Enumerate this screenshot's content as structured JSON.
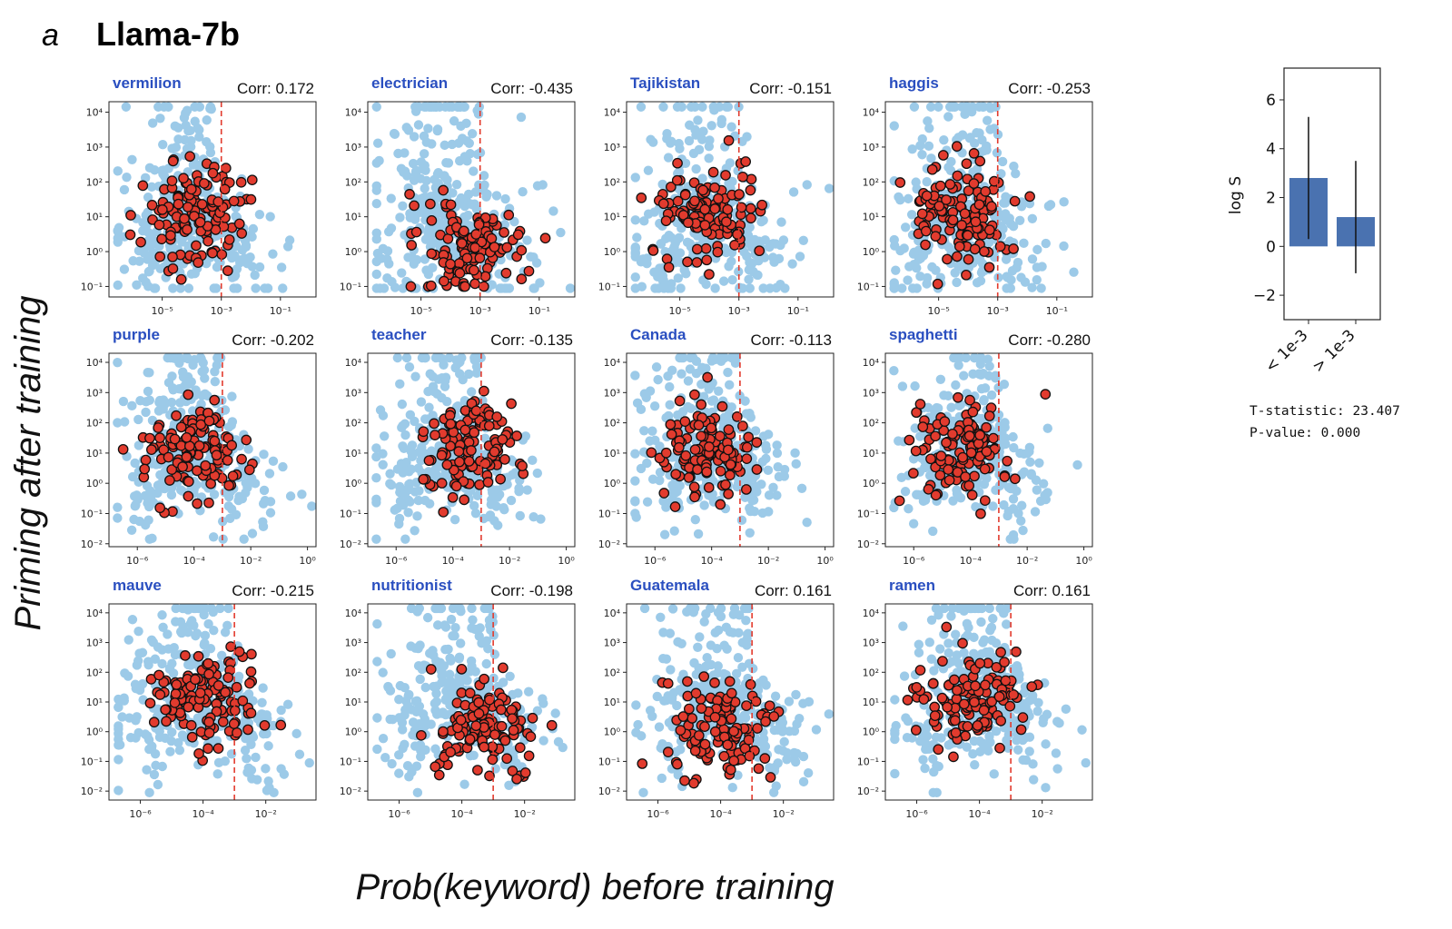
{
  "figure": {
    "panel_letter": "a",
    "title": "Llama-7b",
    "ylabel": "Priming after training",
    "xlabel": "Prob(keyword) before training",
    "colors": {
      "background_points": "#9ccae8",
      "keyword_points": "#e23b2e",
      "marker_edge": "#111111",
      "threshold_line": "#e23b2e",
      "keyword_text": "#2a4fc0",
      "bar": "#4a72b0"
    }
  },
  "chart_data": [
    {
      "type": "scatter",
      "keyword": "vermilion",
      "corr_label": "Corr: 0.172",
      "xscale": "log",
      "yscale": "log",
      "xlim": [
        1.58e-07,
        1.6
      ],
      "ylim": [
        0.05,
        20000
      ],
      "xticks": [
        1e-05,
        0.001,
        0.1
      ],
      "xtick_labels": [
        "10⁻⁵",
        "10⁻³",
        "10⁻¹"
      ],
      "yticks": [
        0.1,
        1,
        10,
        100,
        1000,
        10000
      ],
      "ytick_labels": [
        "10⁻¹",
        "10⁰",
        "10¹",
        "10²",
        "10³",
        "10⁴"
      ],
      "threshold_x": 0.001
    },
    {
      "type": "scatter",
      "keyword": "electrician",
      "corr_label": "Corr: -0.435",
      "xscale": "log",
      "yscale": "log",
      "xlim": [
        1.58e-07,
        1.6
      ],
      "ylim": [
        0.05,
        20000
      ],
      "xticks": [
        1e-05,
        0.001,
        0.1
      ],
      "xtick_labels": [
        "10⁻⁵",
        "10⁻³",
        "10⁻¹"
      ],
      "yticks": [
        0.1,
        1,
        10,
        100,
        1000,
        10000
      ],
      "ytick_labels": [
        "10⁻¹",
        "10⁰",
        "10¹",
        "10²",
        "10³",
        "10⁴"
      ],
      "threshold_x": 0.001
    },
    {
      "type": "scatter",
      "keyword": "Tajikistan",
      "corr_label": "Corr: -0.151",
      "xscale": "log",
      "yscale": "log",
      "xlim": [
        1.58e-07,
        1.6
      ],
      "ylim": [
        0.05,
        20000
      ],
      "xticks": [
        1e-05,
        0.001,
        0.1
      ],
      "xtick_labels": [
        "10⁻⁵",
        "10⁻³",
        "10⁻¹"
      ],
      "yticks": [
        0.1,
        1,
        10,
        100,
        1000,
        10000
      ],
      "ytick_labels": [
        "10⁻¹",
        "10⁰",
        "10¹",
        "10²",
        "10³",
        "10⁴"
      ],
      "threshold_x": 0.001
    },
    {
      "type": "scatter",
      "keyword": "haggis",
      "corr_label": "Corr: -0.253",
      "xscale": "log",
      "yscale": "log",
      "xlim": [
        1.58e-07,
        1.6
      ],
      "ylim": [
        0.05,
        20000
      ],
      "xticks": [
        1e-05,
        0.001,
        0.1
      ],
      "xtick_labels": [
        "10⁻⁵",
        "10⁻³",
        "10⁻¹"
      ],
      "yticks": [
        0.1,
        1,
        10,
        100,
        1000,
        10000
      ],
      "ytick_labels": [
        "10⁻¹",
        "10⁰",
        "10¹",
        "10²",
        "10³",
        "10⁴"
      ],
      "threshold_x": 0.001
    },
    {
      "type": "scatter",
      "keyword": "purple",
      "corr_label": "Corr: -0.202",
      "xscale": "log",
      "yscale": "log",
      "xlim": [
        1e-07,
        2
      ],
      "ylim": [
        0.008,
        20000
      ],
      "xticks": [
        1e-06,
        0.0001,
        0.01,
        1
      ],
      "xtick_labels": [
        "10⁻⁶",
        "10⁻⁴",
        "10⁻²",
        "10⁰"
      ],
      "yticks": [
        0.01,
        0.1,
        1,
        10,
        100,
        1000,
        10000
      ],
      "ytick_labels": [
        "10⁻²",
        "10⁻¹",
        "10⁰",
        "10¹",
        "10²",
        "10³",
        "10⁴"
      ],
      "threshold_x": 0.001
    },
    {
      "type": "scatter",
      "keyword": "teacher",
      "corr_label": "Corr: -0.135",
      "xscale": "log",
      "yscale": "log",
      "xlim": [
        1e-07,
        2
      ],
      "ylim": [
        0.008,
        20000
      ],
      "xticks": [
        1e-06,
        0.0001,
        0.01,
        1
      ],
      "xtick_labels": [
        "10⁻⁶",
        "10⁻⁴",
        "10⁻²",
        "10⁰"
      ],
      "yticks": [
        0.01,
        0.1,
        1,
        10,
        100,
        1000,
        10000
      ],
      "ytick_labels": [
        "10⁻²",
        "10⁻¹",
        "10⁰",
        "10¹",
        "10²",
        "10³",
        "10⁴"
      ],
      "threshold_x": 0.001
    },
    {
      "type": "scatter",
      "keyword": "Canada",
      "corr_label": "Corr: -0.113",
      "xscale": "log",
      "yscale": "log",
      "xlim": [
        1e-07,
        2
      ],
      "ylim": [
        0.008,
        20000
      ],
      "xticks": [
        1e-06,
        0.0001,
        0.01,
        1
      ],
      "xtick_labels": [
        "10⁻⁶",
        "10⁻⁴",
        "10⁻²",
        "10⁰"
      ],
      "yticks": [
        0.01,
        0.1,
        1,
        10,
        100,
        1000,
        10000
      ],
      "ytick_labels": [
        "10⁻²",
        "10⁻¹",
        "10⁰",
        "10¹",
        "10²",
        "10³",
        "10⁴"
      ],
      "threshold_x": 0.001
    },
    {
      "type": "scatter",
      "keyword": "spaghetti",
      "corr_label": "Corr: -0.280",
      "xscale": "log",
      "yscale": "log",
      "xlim": [
        1e-07,
        2
      ],
      "ylim": [
        0.008,
        20000
      ],
      "xticks": [
        1e-06,
        0.0001,
        0.01,
        1
      ],
      "xtick_labels": [
        "10⁻⁶",
        "10⁻⁴",
        "10⁻²",
        "10⁰"
      ],
      "yticks": [
        0.01,
        0.1,
        1,
        10,
        100,
        1000,
        10000
      ],
      "ytick_labels": [
        "10⁻²",
        "10⁻¹",
        "10⁰",
        "10¹",
        "10²",
        "10³",
        "10⁴"
      ],
      "threshold_x": 0.001
    },
    {
      "type": "scatter",
      "keyword": "mauve",
      "corr_label": "Corr: -0.215",
      "xscale": "log",
      "yscale": "log",
      "xlim": [
        1e-07,
        0.4
      ],
      "ylim": [
        0.005,
        20000
      ],
      "xticks": [
        1e-06,
        0.0001,
        0.01
      ],
      "xtick_labels": [
        "10⁻⁶",
        "10⁻⁴",
        "10⁻²"
      ],
      "yticks": [
        0.01,
        0.1,
        1,
        10,
        100,
        1000,
        10000
      ],
      "ytick_labels": [
        "10⁻²",
        "10⁻¹",
        "10⁰",
        "10¹",
        "10²",
        "10³",
        "10⁴"
      ],
      "threshold_x": 0.001
    },
    {
      "type": "scatter",
      "keyword": "nutritionist",
      "corr_label": "Corr: -0.198",
      "xscale": "log",
      "yscale": "log",
      "xlim": [
        1e-07,
        0.4
      ],
      "ylim": [
        0.005,
        20000
      ],
      "xticks": [
        1e-06,
        0.0001,
        0.01
      ],
      "xtick_labels": [
        "10⁻⁶",
        "10⁻⁴",
        "10⁻²"
      ],
      "yticks": [
        0.01,
        0.1,
        1,
        10,
        100,
        1000,
        10000
      ],
      "ytick_labels": [
        "10⁻²",
        "10⁻¹",
        "10⁰",
        "10¹",
        "10²",
        "10³",
        "10⁴"
      ],
      "threshold_x": 0.001
    },
    {
      "type": "scatter",
      "keyword": "Guatemala",
      "corr_label": "Corr: 0.161",
      "xscale": "log",
      "yscale": "log",
      "xlim": [
        1e-07,
        0.4
      ],
      "ylim": [
        0.005,
        20000
      ],
      "xticks": [
        1e-06,
        0.0001,
        0.01
      ],
      "xtick_labels": [
        "10⁻⁶",
        "10⁻⁴",
        "10⁻²"
      ],
      "yticks": [
        0.01,
        0.1,
        1,
        10,
        100,
        1000,
        10000
      ],
      "ytick_labels": [
        "10⁻²",
        "10⁻¹",
        "10⁰",
        "10¹",
        "10²",
        "10³",
        "10⁴"
      ],
      "threshold_x": 0.001
    },
    {
      "type": "scatter",
      "keyword": "ramen",
      "corr_label": "Corr: 0.161",
      "xscale": "log",
      "yscale": "log",
      "xlim": [
        1e-07,
        0.4
      ],
      "ylim": [
        0.005,
        20000
      ],
      "xticks": [
        1e-06,
        0.0001,
        0.01
      ],
      "xtick_labels": [
        "10⁻⁶",
        "10⁻⁴",
        "10⁻²"
      ],
      "yticks": [
        0.01,
        0.1,
        1,
        10,
        100,
        1000,
        10000
      ],
      "ytick_labels": [
        "10⁻²",
        "10⁻¹",
        "10⁰",
        "10¹",
        "10²",
        "10³",
        "10⁴"
      ],
      "threshold_x": 0.001
    },
    {
      "type": "bar",
      "categories": [
        "< 1e-3",
        "> 1e-3"
      ],
      "values": [
        2.8,
        1.2
      ],
      "errors": [
        [
          0.3,
          5.3
        ],
        [
          -1.1,
          3.5
        ]
      ],
      "ylabel": "log S",
      "ylim": [
        -3,
        7.3
      ],
      "yticks": [
        -2,
        0,
        2,
        4,
        6
      ],
      "ytick_labels": [
        "−2",
        "0",
        "2",
        "4",
        "6"
      ],
      "stats": [
        "T-statistic: 23.407",
        "P-value: 0.000"
      ]
    }
  ]
}
